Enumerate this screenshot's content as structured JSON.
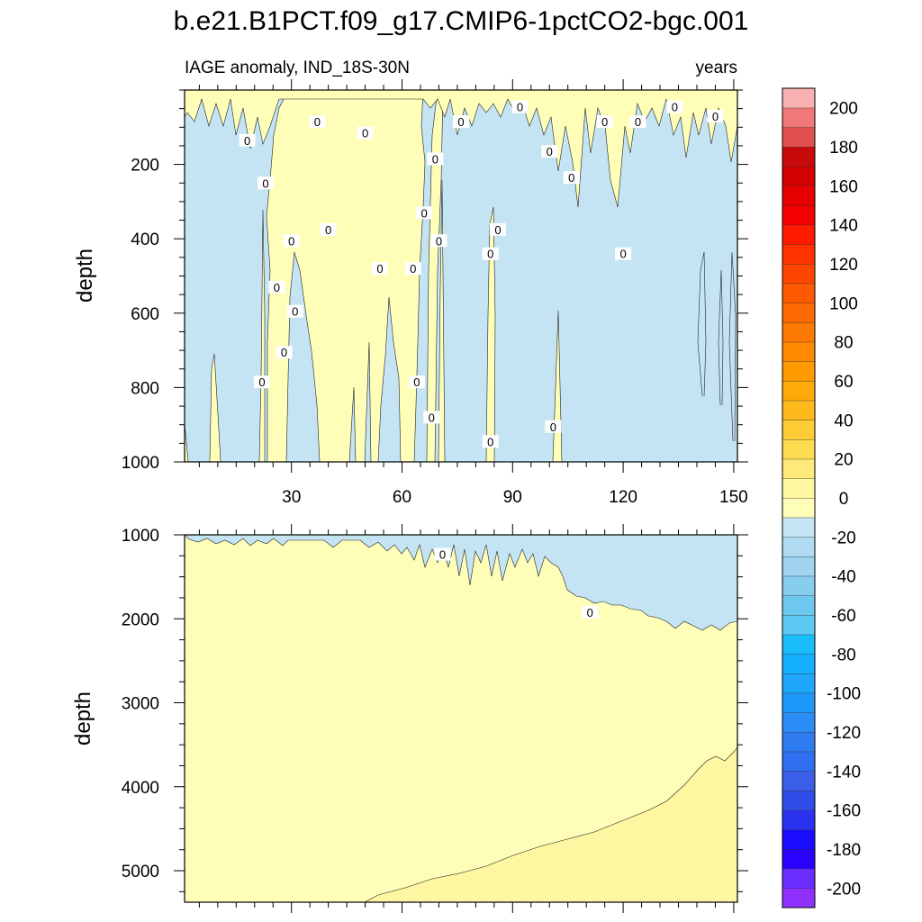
{
  "chart_data": {
    "type": "contour",
    "title": "b.e21.B1PCT.f09_g17.CMIP6-1pctCO2-bgc.001",
    "subtitle_left": "IAGE anomaly, IND_18S-30N",
    "subtitle_right": "years",
    "x_range": [
      1,
      151
    ],
    "x_ticks": [
      30,
      60,
      90,
      120,
      150
    ],
    "x_tick_labels": [
      "30",
      "60",
      "90",
      "120",
      "150"
    ],
    "panels": [
      {
        "name": "upper-ocean",
        "ylabel": "depth",
        "ylim": [
          0,
          1000
        ],
        "y_ticks": [
          200,
          400,
          600,
          800,
          1000
        ],
        "y_tick_labels": [
          "200",
          "400",
          "600",
          "800",
          "1000"
        ],
        "contour_labels": [
          {
            "year": 18,
            "depth": 135,
            "text": "0"
          },
          {
            "year": 23,
            "depth": 250,
            "text": "0"
          },
          {
            "year": 37,
            "depth": 85,
            "text": "0"
          },
          {
            "year": 50,
            "depth": 115,
            "text": "0"
          },
          {
            "year": 76,
            "depth": 85,
            "text": "0"
          },
          {
            "year": 92,
            "depth": 45,
            "text": "0"
          },
          {
            "year": 100,
            "depth": 165,
            "text": "0"
          },
          {
            "year": 106,
            "depth": 235,
            "text": "0"
          },
          {
            "year": 115,
            "depth": 85,
            "text": "0"
          },
          {
            "year": 124,
            "depth": 85,
            "text": "0"
          },
          {
            "year": 134,
            "depth": 45,
            "text": "0"
          },
          {
            "year": 145,
            "depth": 70,
            "text": "0"
          },
          {
            "year": 69,
            "depth": 185,
            "text": "0"
          },
          {
            "year": 66,
            "depth": 330,
            "text": "0"
          },
          {
            "year": 30,
            "depth": 405,
            "text": "0"
          },
          {
            "year": 40,
            "depth": 375,
            "text": "0"
          },
          {
            "year": 70,
            "depth": 405,
            "text": "0"
          },
          {
            "year": 86,
            "depth": 375,
            "text": "0"
          },
          {
            "year": 84,
            "depth": 440,
            "text": "0"
          },
          {
            "year": 120,
            "depth": 440,
            "text": "0"
          },
          {
            "year": 26,
            "depth": 530,
            "text": "0"
          },
          {
            "year": 54,
            "depth": 480,
            "text": "0"
          },
          {
            "year": 63,
            "depth": 480,
            "text": "0"
          },
          {
            "year": 31,
            "depth": 595,
            "text": "0"
          },
          {
            "year": 28,
            "depth": 705,
            "text": "0"
          },
          {
            "year": 22,
            "depth": 785,
            "text": "0"
          },
          {
            "year": 64,
            "depth": 785,
            "text": "0"
          },
          {
            "year": 68,
            "depth": 880,
            "text": "0"
          },
          {
            "year": 84,
            "depth": 945,
            "text": "0"
          },
          {
            "year": 101,
            "depth": 905,
            "text": "0"
          }
        ]
      },
      {
        "name": "deep-ocean",
        "ylabel": "depth",
        "ylim": [
          1000,
          5375
        ],
        "y_ticks": [
          1000,
          2000,
          3000,
          4000,
          5000
        ],
        "y_tick_labels": [
          "1000",
          "2000",
          "3000",
          "4000",
          "5000"
        ],
        "contour_labels": [
          {
            "year": 71,
            "depth": 1230,
            "text": "0"
          },
          {
            "year": 111,
            "depth": 1920,
            "text": "0"
          }
        ]
      }
    ],
    "colorbar": {
      "levels": [
        -200,
        -190,
        -180,
        -170,
        -160,
        -150,
        -140,
        -130,
        -120,
        -110,
        -100,
        -90,
        -80,
        -70,
        -60,
        -50,
        -40,
        -30,
        -20,
        -10,
        0,
        10,
        20,
        30,
        40,
        50,
        60,
        70,
        80,
        90,
        100,
        110,
        120,
        130,
        140,
        150,
        160,
        170,
        180,
        190,
        200
      ],
      "tick_labels": [
        "-200",
        "-180",
        "-160",
        "-140",
        "-120",
        "-100",
        "-80",
        "-60",
        "-40",
        "-20",
        "0",
        "20",
        "40",
        "60",
        "80",
        "100",
        "120",
        "140",
        "160",
        "180",
        "200"
      ],
      "colors": [
        "#8f30ff",
        "#6a2dff",
        "#2a00ff",
        "#1a0dff",
        "#2a32f0",
        "#2f4ee8",
        "#3a5ee8",
        "#3070f0",
        "#2f7cf0",
        "#2a8cf5",
        "#1e98f8",
        "#1ea6fa",
        "#14b0ff",
        "#18bcf8",
        "#5ecaf4",
        "#6fc8f0",
        "#86cdee",
        "#9fd3ee",
        "#b0dbf0",
        "#c4e4f4",
        "#fefeb8",
        "#fef6a0",
        "#fee97a",
        "#fedc50",
        "#fecd36",
        "#feb91c",
        "#feab0a",
        "#ff9a00",
        "#ff8a00",
        "#ff7a00",
        "#ff6a00",
        "#ff5a00",
        "#ff4600",
        "#ff3200",
        "#ff1a00",
        "#f50000",
        "#e60000",
        "#d40000",
        "#c80a0a",
        "#e05050",
        "#f07878",
        "#f8b0b0"
      ]
    }
  }
}
